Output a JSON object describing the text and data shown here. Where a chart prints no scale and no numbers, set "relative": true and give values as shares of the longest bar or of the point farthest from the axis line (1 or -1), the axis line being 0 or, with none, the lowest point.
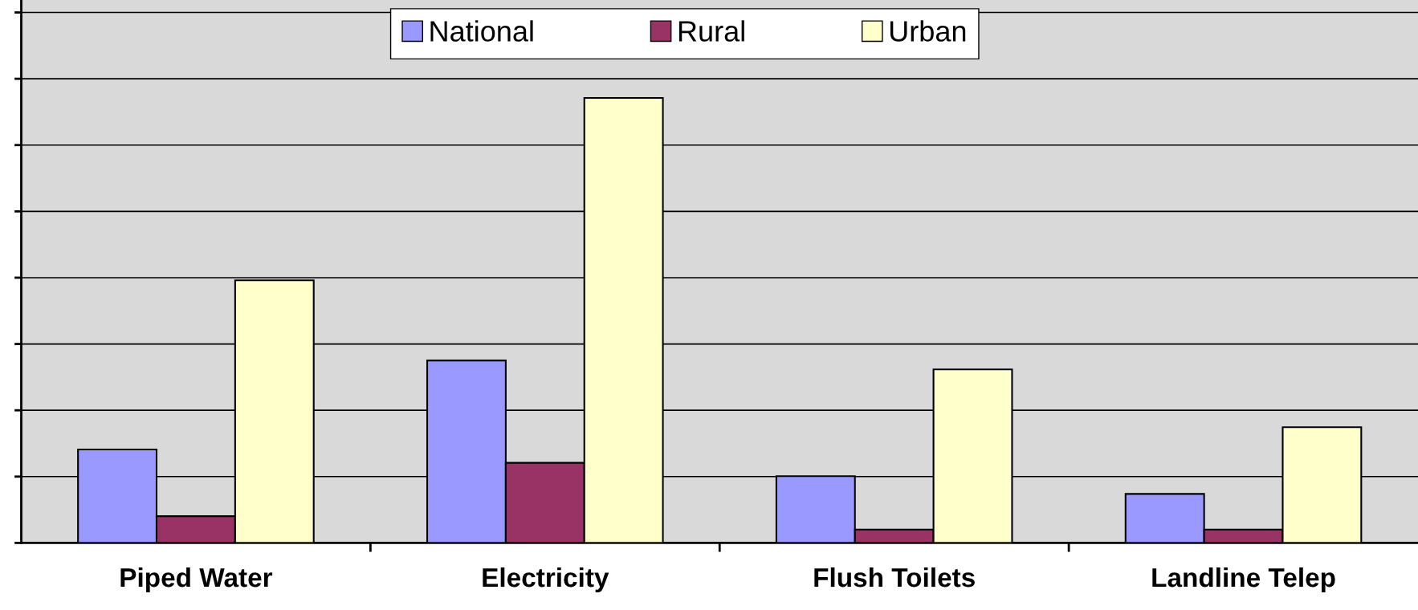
{
  "chart_data": {
    "type": "bar",
    "relative": true,
    "categories": [
      "Piped Water",
      "Electricity",
      "Flush Toilets",
      "Landline Telep"
    ],
    "series": [
      {
        "name": "National",
        "color": "#9999ff",
        "values": [
          0.21,
          0.41,
          0.15,
          0.11
        ]
      },
      {
        "name": "Rural",
        "color": "#993366",
        "values": [
          0.06,
          0.18,
          0.03,
          0.03
        ]
      },
      {
        "name": "Urban",
        "color": "#ffffcc",
        "values": [
          0.59,
          1,
          0.39,
          0.26
        ]
      }
    ],
    "legend": "top",
    "grid": "y",
    "tick_labels": "x"
  }
}
